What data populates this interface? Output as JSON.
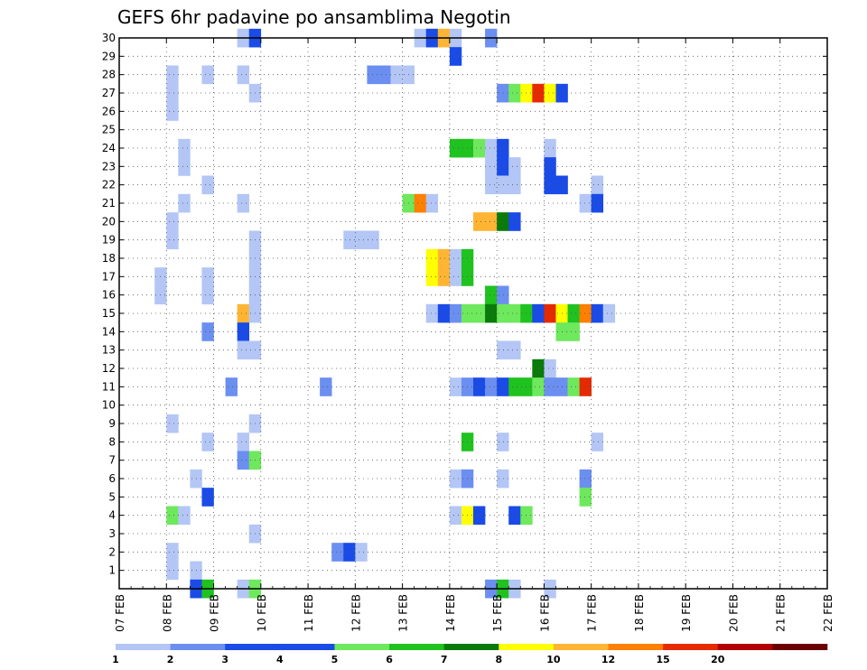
{
  "chart_data": {
    "type": "heatmap",
    "title": "GEFS 6hr padavine po ansamblima Negotin",
    "xlabel": "",
    "ylabel": "",
    "x_tick_labels": [
      "07 FEB",
      "08 FEB",
      "09 FEB",
      "10 FEB",
      "11 FEB",
      "12 FEB",
      "13 FEB",
      "14 FEB",
      "15 FEB",
      "16 FEB",
      "17 FEB",
      "18 FEB",
      "19 FEB",
      "20 FEB",
      "21 FEB",
      "22 FEB"
    ],
    "y_tick_labels": [
      "1",
      "2",
      "3",
      "4",
      "5",
      "6",
      "7",
      "8",
      "9",
      "10",
      "11",
      "12",
      "13",
      "14",
      "15",
      "16",
      "17",
      "18",
      "19",
      "20",
      "21",
      "22",
      "23",
      "24",
      "25",
      "26",
      "27",
      "28",
      "29",
      "30"
    ],
    "y_range": [
      0,
      30
    ],
    "time_steps_per_day": 4,
    "grid": true,
    "colorbar": {
      "position": "bottom",
      "labels": [
        "1",
        "2",
        "3",
        "4",
        "5",
        "6",
        "7",
        "8",
        "10",
        "12",
        "15",
        "20"
      ],
      "colors": [
        "#b3c6f5",
        "#6b8ff0",
        "#1a4be6",
        "#1a4be6",
        "#6ee85c",
        "#1fc21f",
        "#0a7a0a",
        "#ffff00",
        "#ffb533",
        "#ff7f00",
        "#e62a00",
        "#b30000",
        "#6b0000"
      ]
    },
    "cells_note": "",
    "cells": [
      [
        30,
        10,
        0
      ],
      [
        30,
        11,
        2
      ],
      [
        30,
        25,
        0
      ],
      [
        30,
        26,
        2
      ],
      [
        30,
        27,
        8
      ],
      [
        30,
        28,
        0
      ],
      [
        30,
        31,
        1
      ],
      [
        29,
        28,
        2
      ],
      [
        28,
        4,
        0
      ],
      [
        28,
        7,
        0
      ],
      [
        28,
        10,
        0
      ],
      [
        28,
        21,
        1
      ],
      [
        28,
        22,
        1
      ],
      [
        28,
        23,
        0
      ],
      [
        28,
        24,
        0
      ],
      [
        27,
        4,
        0
      ],
      [
        27,
        11,
        0
      ],
      [
        27,
        32,
        1
      ],
      [
        27,
        33,
        4
      ],
      [
        27,
        34,
        7
      ],
      [
        27,
        35,
        10
      ],
      [
        27,
        36,
        7
      ],
      [
        27,
        37,
        2
      ],
      [
        26,
        4,
        0
      ],
      [
        24,
        5,
        0
      ],
      [
        24,
        28,
        5
      ],
      [
        24,
        29,
        5
      ],
      [
        24,
        30,
        4
      ],
      [
        24,
        31,
        0
      ],
      [
        24,
        32,
        2
      ],
      [
        24,
        36,
        0
      ],
      [
        23,
        5,
        0
      ],
      [
        23,
        31,
        0
      ],
      [
        23,
        32,
        2
      ],
      [
        23,
        33,
        0
      ],
      [
        23,
        36,
        2
      ],
      [
        22,
        7,
        0
      ],
      [
        22,
        31,
        0
      ],
      [
        22,
        32,
        0
      ],
      [
        22,
        33,
        0
      ],
      [
        22,
        36,
        2
      ],
      [
        22,
        37,
        2
      ],
      [
        22,
        40,
        0
      ],
      [
        21,
        5,
        0
      ],
      [
        21,
        10,
        0
      ],
      [
        21,
        24,
        4
      ],
      [
        21,
        25,
        9
      ],
      [
        21,
        26,
        0
      ],
      [
        21,
        39,
        0
      ],
      [
        21,
        40,
        2
      ],
      [
        20,
        4,
        0
      ],
      [
        20,
        30,
        8
      ],
      [
        20,
        31,
        8
      ],
      [
        20,
        32,
        6
      ],
      [
        20,
        33,
        2
      ],
      [
        19,
        4,
        0
      ],
      [
        19,
        11,
        0
      ],
      [
        19,
        19,
        0
      ],
      [
        19,
        20,
        0
      ],
      [
        19,
        21,
        0
      ],
      [
        18,
        11,
        0
      ],
      [
        18,
        26,
        7
      ],
      [
        18,
        27,
        8
      ],
      [
        18,
        28,
        0
      ],
      [
        18,
        29,
        5
      ],
      [
        17,
        3,
        0
      ],
      [
        17,
        7,
        0
      ],
      [
        17,
        11,
        0
      ],
      [
        17,
        26,
        7
      ],
      [
        17,
        27,
        8
      ],
      [
        17,
        28,
        0
      ],
      [
        17,
        29,
        5
      ],
      [
        16,
        3,
        0
      ],
      [
        16,
        7,
        0
      ],
      [
        16,
        11,
        0
      ],
      [
        16,
        31,
        5
      ],
      [
        16,
        32,
        1
      ],
      [
        15,
        10,
        8
      ],
      [
        15,
        11,
        0
      ],
      [
        15,
        26,
        0
      ],
      [
        15,
        27,
        2
      ],
      [
        15,
        28,
        1
      ],
      [
        15,
        29,
        4
      ],
      [
        15,
        30,
        4
      ],
      [
        15,
        31,
        6
      ],
      [
        15,
        32,
        4
      ],
      [
        15,
        33,
        4
      ],
      [
        15,
        34,
        5
      ],
      [
        15,
        35,
        2
      ],
      [
        15,
        36,
        10
      ],
      [
        15,
        37,
        7
      ],
      [
        15,
        38,
        5
      ],
      [
        15,
        39,
        9
      ],
      [
        15,
        40,
        2
      ],
      [
        15,
        41,
        0
      ],
      [
        14,
        7,
        1
      ],
      [
        14,
        10,
        2
      ],
      [
        14,
        37,
        4
      ],
      [
        14,
        38,
        4
      ],
      [
        13,
        10,
        0
      ],
      [
        13,
        11,
        0
      ],
      [
        13,
        32,
        0
      ],
      [
        13,
        33,
        0
      ],
      [
        12,
        35,
        6
      ],
      [
        12,
        36,
        0
      ],
      [
        11,
        9,
        1
      ],
      [
        11,
        17,
        1
      ],
      [
        11,
        28,
        0
      ],
      [
        11,
        29,
        1
      ],
      [
        11,
        30,
        2
      ],
      [
        11,
        31,
        1
      ],
      [
        11,
        32,
        2
      ],
      [
        11,
        33,
        5
      ],
      [
        11,
        34,
        5
      ],
      [
        11,
        35,
        4
      ],
      [
        11,
        36,
        1
      ],
      [
        11,
        37,
        1
      ],
      [
        11,
        38,
        4
      ],
      [
        11,
        39,
        10
      ],
      [
        9,
        4,
        0
      ],
      [
        9,
        11,
        0
      ],
      [
        8,
        7,
        0
      ],
      [
        8,
        10,
        0
      ],
      [
        8,
        29,
        5
      ],
      [
        8,
        32,
        0
      ],
      [
        8,
        40,
        0
      ],
      [
        7,
        10,
        1
      ],
      [
        7,
        11,
        4
      ],
      [
        6,
        6,
        0
      ],
      [
        6,
        28,
        0
      ],
      [
        6,
        29,
        1
      ],
      [
        6,
        32,
        0
      ],
      [
        6,
        39,
        1
      ],
      [
        5,
        7,
        2
      ],
      [
        5,
        39,
        4
      ],
      [
        4,
        4,
        4
      ],
      [
        4,
        5,
        0
      ],
      [
        4,
        28,
        0
      ],
      [
        4,
        29,
        7
      ],
      [
        4,
        30,
        2
      ],
      [
        4,
        33,
        2
      ],
      [
        4,
        34,
        4
      ],
      [
        3,
        11,
        0
      ],
      [
        2,
        4,
        0
      ],
      [
        2,
        18,
        1
      ],
      [
        2,
        19,
        2
      ],
      [
        2,
        20,
        0
      ],
      [
        1,
        4,
        0
      ],
      [
        1,
        6,
        0
      ],
      [
        0,
        6,
        2
      ],
      [
        0,
        7,
        5
      ],
      [
        0,
        10,
        0
      ],
      [
        0,
        11,
        4
      ],
      [
        0,
        31,
        1
      ],
      [
        0,
        32,
        5
      ],
      [
        0,
        33,
        0
      ],
      [
        0,
        36,
        0
      ]
    ]
  }
}
